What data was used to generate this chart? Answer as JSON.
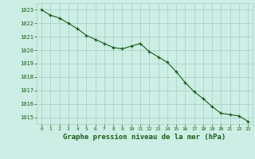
{
  "x": [
    0,
    1,
    2,
    3,
    4,
    5,
    6,
    7,
    8,
    9,
    10,
    11,
    12,
    13,
    14,
    15,
    16,
    17,
    18,
    19,
    20,
    21,
    22,
    23
  ],
  "y": [
    1023.0,
    1022.6,
    1022.4,
    1022.0,
    1021.6,
    1021.1,
    1020.8,
    1020.5,
    1020.2,
    1020.1,
    1020.3,
    1020.5,
    1019.9,
    1019.5,
    1019.1,
    1018.4,
    1017.6,
    1016.9,
    1016.4,
    1015.8,
    1015.3,
    1015.2,
    1015.1,
    1014.7
  ],
  "line_color": "#1a5c1a",
  "marker_color": "#1a5c1a",
  "bg_color": "#cceee4",
  "grid_color": "#a8cec4",
  "xlabel": "Graphe pression niveau de la mer (hPa)",
  "xlabel_color": "#1a5c1a",
  "tick_color": "#1a5c1a",
  "ylim_min": 1014.5,
  "ylim_max": 1023.5,
  "yticks": [
    1015,
    1016,
    1017,
    1018,
    1019,
    1020,
    1021,
    1022,
    1023
  ],
  "xticks": [
    0,
    1,
    2,
    3,
    4,
    5,
    6,
    7,
    8,
    9,
    10,
    11,
    12,
    13,
    14,
    15,
    16,
    17,
    18,
    19,
    20,
    21,
    22,
    23
  ]
}
